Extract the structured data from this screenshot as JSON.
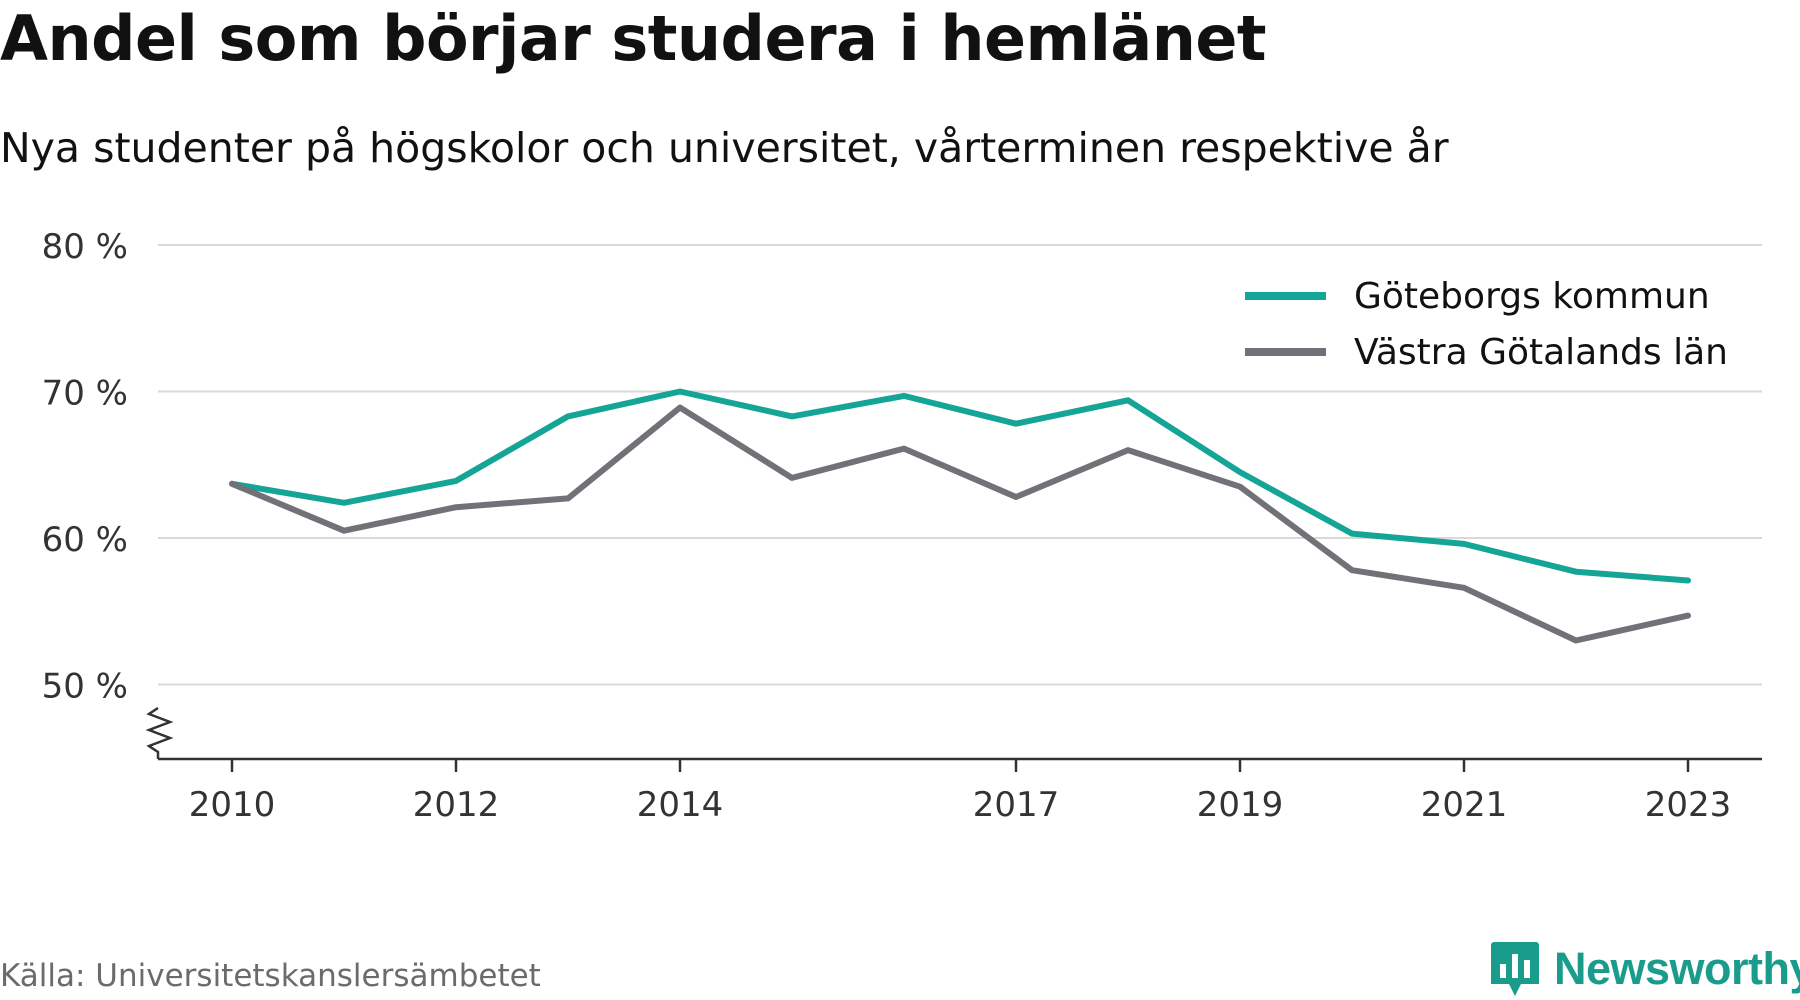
{
  "header": {
    "title": "Andel som börjar studera i hemlänet",
    "subtitle": "Nya studenter på högskolor och universitet, vårterminen respektive år"
  },
  "footer": {
    "source": "Källa: Universitetskanslersämbetet",
    "brand": "Newsworthy"
  },
  "colors": {
    "goteborg": "#14a596",
    "vastra_gotaland": "#727178",
    "grid": "#d9d9d9",
    "axis": "#333333",
    "brand": "#1a9c8c"
  },
  "chart_data": {
    "type": "line",
    "x": [
      2010,
      2011,
      2012,
      2013,
      2014,
      2015,
      2016,
      2017,
      2018,
      2019,
      2020,
      2021,
      2022,
      2023
    ],
    "x_ticks": [
      2010,
      2012,
      2014,
      2017,
      2019,
      2021,
      2023
    ],
    "y_ticks": [
      50,
      60,
      70,
      80
    ],
    "y_tick_labels": [
      "50 %",
      "60 %",
      "70 %",
      "80 %"
    ],
    "ylim": [
      45,
      80
    ],
    "y_axis_break": true,
    "grid": true,
    "legend_position": "top-right",
    "series": [
      {
        "name": "Göteborgs kommun",
        "values": [
          63.7,
          62.4,
          63.9,
          68.3,
          70.0,
          68.3,
          69.7,
          67.8,
          69.4,
          64.5,
          60.3,
          59.6,
          57.7,
          57.1
        ]
      },
      {
        "name": "Västra Götalands län",
        "values": [
          63.7,
          60.5,
          62.1,
          62.7,
          68.9,
          64.1,
          66.1,
          62.8,
          66.0,
          63.5,
          57.8,
          56.6,
          53.0,
          54.7
        ]
      }
    ]
  }
}
